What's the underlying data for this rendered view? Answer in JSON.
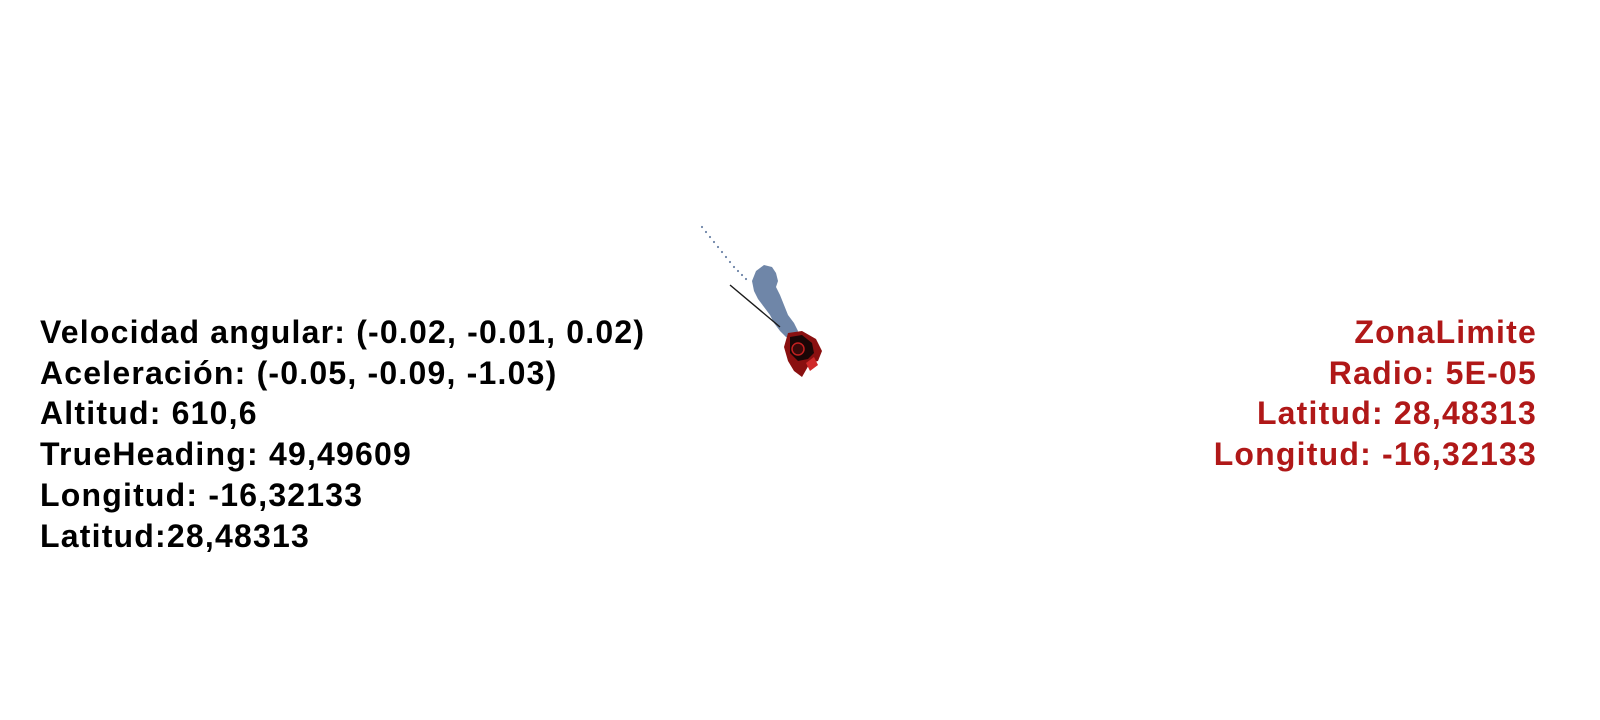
{
  "telemetry": {
    "angular_velocity": "Velocidad angular: (-0.02, -0.01, 0.02)",
    "acceleration": "Aceleración: (-0.05, -0.09, -1.03)",
    "altitude": "Altitud: 610,6",
    "true_heading": "TrueHeading: 49,49609",
    "longitude": "Longitud: -16,32133",
    "latitude": "Latitud:28,48313"
  },
  "zone": {
    "title": "ZonaLimite",
    "radius": "Radio: 5E-05",
    "latitude": "Latitud: 28,48313",
    "longitude": "Longitud: -16,32133"
  },
  "colors": {
    "telemetry_text": "#000000",
    "zone_text": "#b01818",
    "smoke": "#6f86a8",
    "vehicle": "#8a1010"
  }
}
